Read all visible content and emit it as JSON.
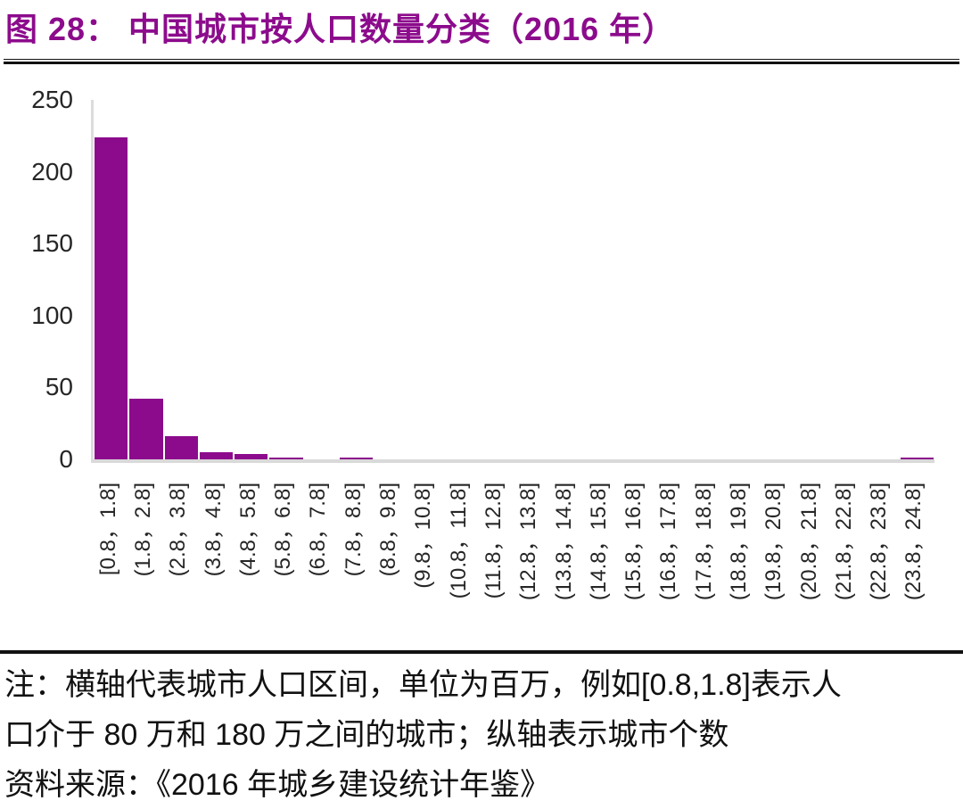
{
  "title": "图 28： 中国城市按人口数量分类（2016 年）",
  "colors": {
    "accent": "#8C0B8C",
    "axis_line": "#D9D9D9",
    "tick_text": "#262626",
    "rule": "#111111"
  },
  "chart_data": {
    "type": "bar",
    "title": "图 28： 中国城市按人口数量分类（2016 年）",
    "categories": [
      "[0.8，1.8]",
      "(1.8，2.8]",
      "(2.8，3.8]",
      "(3.8，4.8]",
      "(4.8，5.8]",
      "(5.8，6.8]",
      "(6.8，7.8]",
      "(7.8，8.8]",
      "(8.8，9.8]",
      "(9.8，10.8]",
      "(10.8，11.8]",
      "(11.8，12.8]",
      "(12.8，13.8]",
      "(13.8，14.8]",
      "(14.8，15.8]",
      "(15.8，16.8]",
      "(16.8，17.8]",
      "(17.8，18.8]",
      "(18.8，19.8]",
      "(19.8，20.8]",
      "(20.8，21.8]",
      "(21.8，22.8]",
      "(22.8，23.8]",
      "(23.8，24.8]"
    ],
    "values": [
      224,
      42,
      16,
      5,
      4,
      1,
      0,
      1,
      0,
      0,
      0,
      0,
      0,
      0,
      0,
      0,
      0,
      0,
      0,
      0,
      0,
      0,
      0,
      1
    ],
    "y_ticks": [
      0,
      50,
      100,
      150,
      200,
      250
    ],
    "ylim": [
      0,
      250
    ],
    "grid": "off",
    "legend": "none",
    "bar_color": "#8C0B8C"
  },
  "notes": {
    "lines": [
      "注：横轴代表城市人口区间，单位为百万，例如[0.8,1.8]表示人",
      "口介于 80 万和 180 万之间的城市；纵轴表示城市个数",
      "资料来源：《2016 年城乡建设统计年鉴》"
    ]
  }
}
